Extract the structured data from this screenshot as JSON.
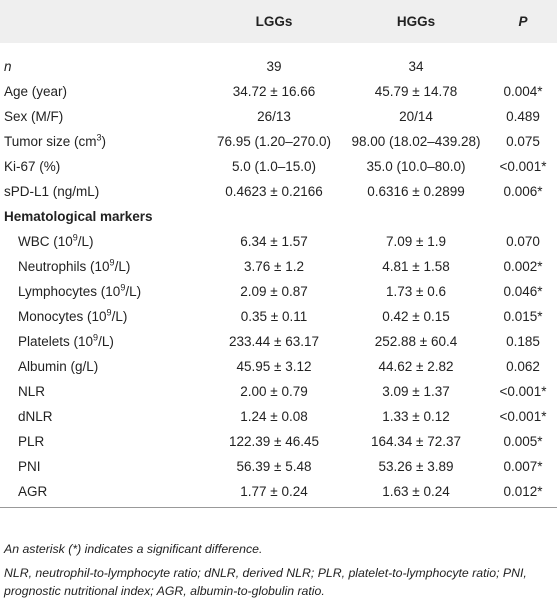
{
  "table": {
    "header": [
      "",
      "LGGs",
      "HGGs",
      "P"
    ],
    "rows": [
      {
        "label": [
          {
            "text": "n",
            "italic": true
          }
        ],
        "cells": [
          "39",
          "34",
          ""
        ]
      },
      {
        "label": [
          {
            "text": "Age (year)"
          }
        ],
        "cells": [
          "34.72 ± 16.66",
          "45.79 ± 14.78",
          "0.004*"
        ]
      },
      {
        "label": [
          {
            "text": "Sex (M/F)"
          }
        ],
        "cells": [
          "26/13",
          "20/14",
          "0.489"
        ]
      },
      {
        "label": [
          {
            "text": "Tumor size (cm"
          },
          {
            "text": "3",
            "sup": true
          },
          {
            "text": ")"
          }
        ],
        "cells": [
          "76.95 (1.20–270.0)",
          "98.00 (18.02–439.28)",
          "0.075"
        ]
      },
      {
        "label": [
          {
            "text": "Ki-67 (%)"
          }
        ],
        "cells": [
          "5.0 (1.0–15.0)",
          "35.0 (10.0–80.0)",
          "<0.001*"
        ]
      },
      {
        "label": [
          {
            "text": "sPD-L1 (ng/mL)"
          }
        ],
        "cells": [
          "0.4623 ± 0.2166",
          "0.6316 ± 0.2899",
          "0.006*"
        ]
      },
      {
        "label": [
          {
            "text": "Hematological markers"
          }
        ],
        "section": true
      },
      {
        "label": [
          {
            "text": "WBC (10"
          },
          {
            "text": "9",
            "sup": true
          },
          {
            "text": "/L)"
          }
        ],
        "indent": true,
        "cells": [
          "6.34 ± 1.57",
          "7.09 ± 1.9",
          "0.070"
        ]
      },
      {
        "label": [
          {
            "text": "Neutrophils (10"
          },
          {
            "text": "9",
            "sup": true
          },
          {
            "text": "/L)"
          }
        ],
        "indent": true,
        "cells": [
          "3.76 ± 1.2",
          "4.81 ± 1.58",
          "0.002*"
        ]
      },
      {
        "label": [
          {
            "text": "Lymphocytes (10"
          },
          {
            "text": "9",
            "sup": true
          },
          {
            "text": "/L)"
          }
        ],
        "indent": true,
        "cells": [
          "2.09 ± 0.87",
          "1.73 ± 0.6",
          "0.046*"
        ]
      },
      {
        "label": [
          {
            "text": "Monocytes (10"
          },
          {
            "text": "9",
            "sup": true
          },
          {
            "text": "/L)"
          }
        ],
        "indent": true,
        "cells": [
          "0.35 ± 0.11",
          "0.42 ± 0.15",
          "0.015*"
        ]
      },
      {
        "label": [
          {
            "text": "Platelets (10"
          },
          {
            "text": "9",
            "sup": true
          },
          {
            "text": "/L)"
          }
        ],
        "indent": true,
        "cells": [
          "233.44 ± 63.17",
          "252.88 ± 60.4",
          "0.185"
        ]
      },
      {
        "label": [
          {
            "text": "Albumin (g/L)"
          }
        ],
        "indent": true,
        "cells": [
          "45.95 ± 3.12",
          "44.62 ± 2.82",
          "0.062"
        ]
      },
      {
        "label": [
          {
            "text": "NLR"
          }
        ],
        "indent": true,
        "cells": [
          "2.00 ± 0.79",
          "3.09 ± 1.37",
          "<0.001*"
        ]
      },
      {
        "label": [
          {
            "text": "dNLR"
          }
        ],
        "indent": true,
        "cells": [
          "1.24 ± 0.08",
          "1.33 ± 0.12",
          "<0.001*"
        ]
      },
      {
        "label": [
          {
            "text": "PLR"
          }
        ],
        "indent": true,
        "cells": [
          "122.39 ± 46.45",
          "164.34 ± 72.37",
          "0.005*"
        ]
      },
      {
        "label": [
          {
            "text": "PNI"
          }
        ],
        "indent": true,
        "cells": [
          "56.39 ± 5.48",
          "53.26 ± 3.89",
          "0.007*"
        ]
      },
      {
        "label": [
          {
            "text": "AGR"
          }
        ],
        "indent": true,
        "cells": [
          "1.77 ± 0.24",
          "1.63 ± 0.24",
          "0.012*"
        ]
      }
    ],
    "footnotes": [
      "An asterisk (*) indicates a significant difference.",
      "NLR, neutrophil-to-lymphocyte ratio; dNLR, derived NLR; PLR, platelet-to-lymphocyte ratio; PNI, prognostic nutritional index; AGR, albumin-to-globulin ratio."
    ]
  }
}
